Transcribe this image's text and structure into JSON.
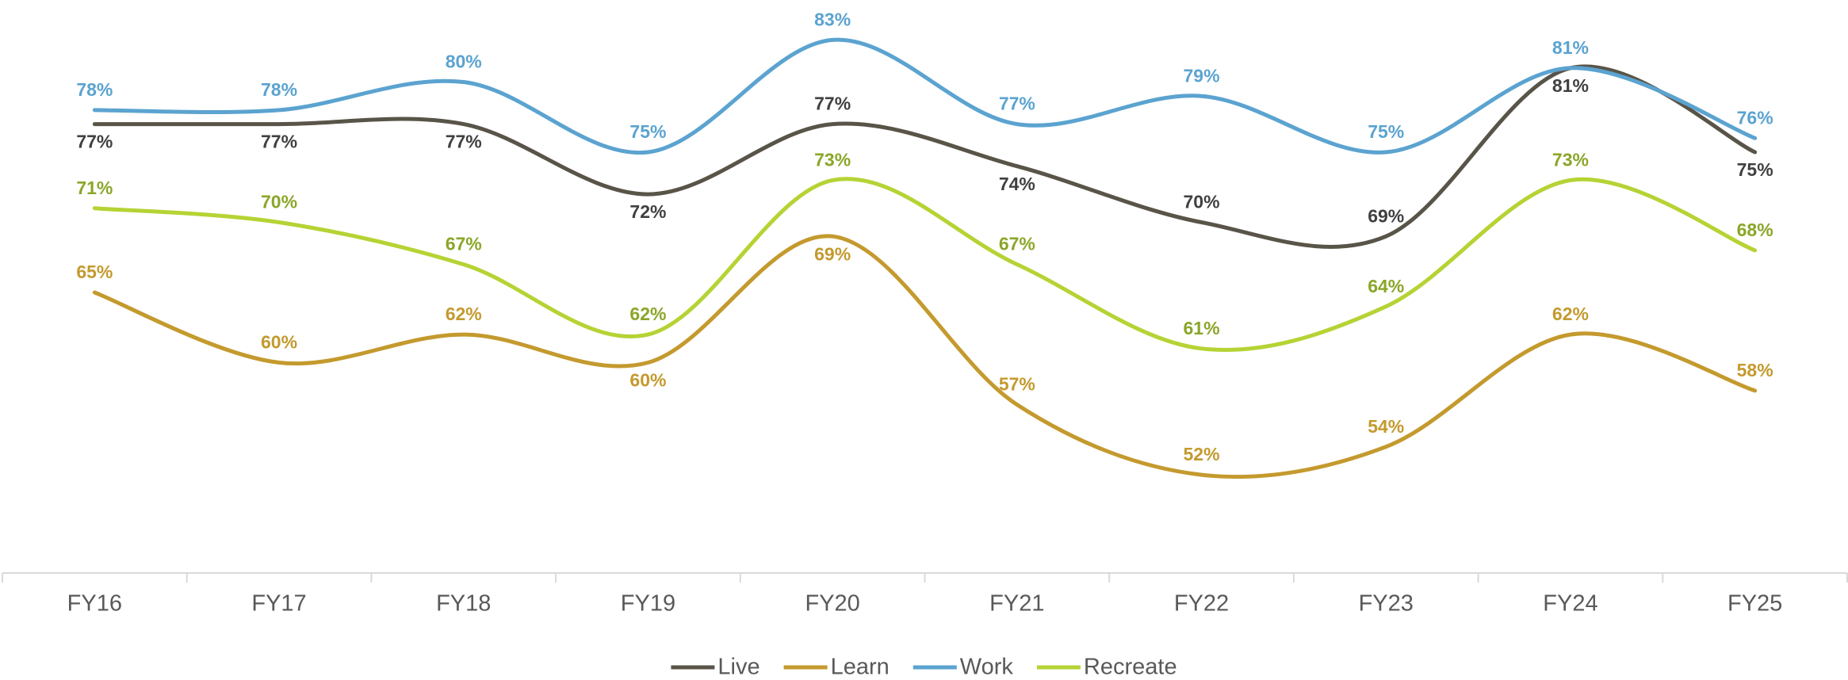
{
  "chart_data": {
    "type": "line",
    "categories": [
      "FY16",
      "FY17",
      "FY18",
      "FY19",
      "FY20",
      "FY21",
      "FY22",
      "FY23",
      "FY24",
      "FY25"
    ],
    "ylim": [
      45,
      85
    ],
    "legend": "bottom",
    "grid": false,
    "series": [
      {
        "name": "Live",
        "color": "#595448",
        "label_color": "#404040",
        "values": [
          77,
          77,
          77,
          72,
          77,
          74,
          70,
          69,
          81,
          75
        ],
        "value_labels": [
          "77%",
          "77%",
          "77%",
          "72%",
          "77%",
          "74%",
          "70%",
          "69%",
          "81%",
          "75%"
        ]
      },
      {
        "name": "Learn",
        "color": "#c49a2e",
        "label_color": "#c49a2e",
        "values": [
          65,
          60,
          62,
          60,
          69,
          57,
          52,
          54,
          62,
          58
        ],
        "value_labels": [
          "65%",
          "60%",
          "62%",
          "60%",
          "69%",
          "57%",
          "52%",
          "54%",
          "62%",
          "58%"
        ]
      },
      {
        "name": "Work",
        "color": "#5ba3d0",
        "label_color": "#5ba3d0",
        "values": [
          78,
          78,
          80,
          75,
          83,
          77,
          79,
          75,
          81,
          76
        ],
        "value_labels": [
          "78%",
          "78%",
          "80%",
          "75%",
          "83%",
          "77%",
          "79%",
          "75%",
          "81%",
          "76%"
        ]
      },
      {
        "name": "Recreate",
        "color": "#b5d334",
        "label_color": "#8aa628",
        "values": [
          71,
          70,
          67,
          62,
          73,
          67,
          61,
          64,
          73,
          68
        ],
        "value_labels": [
          "71%",
          "70%",
          "67%",
          "62%",
          "73%",
          "67%",
          "61%",
          "64%",
          "73%",
          "68%"
        ]
      }
    ]
  }
}
